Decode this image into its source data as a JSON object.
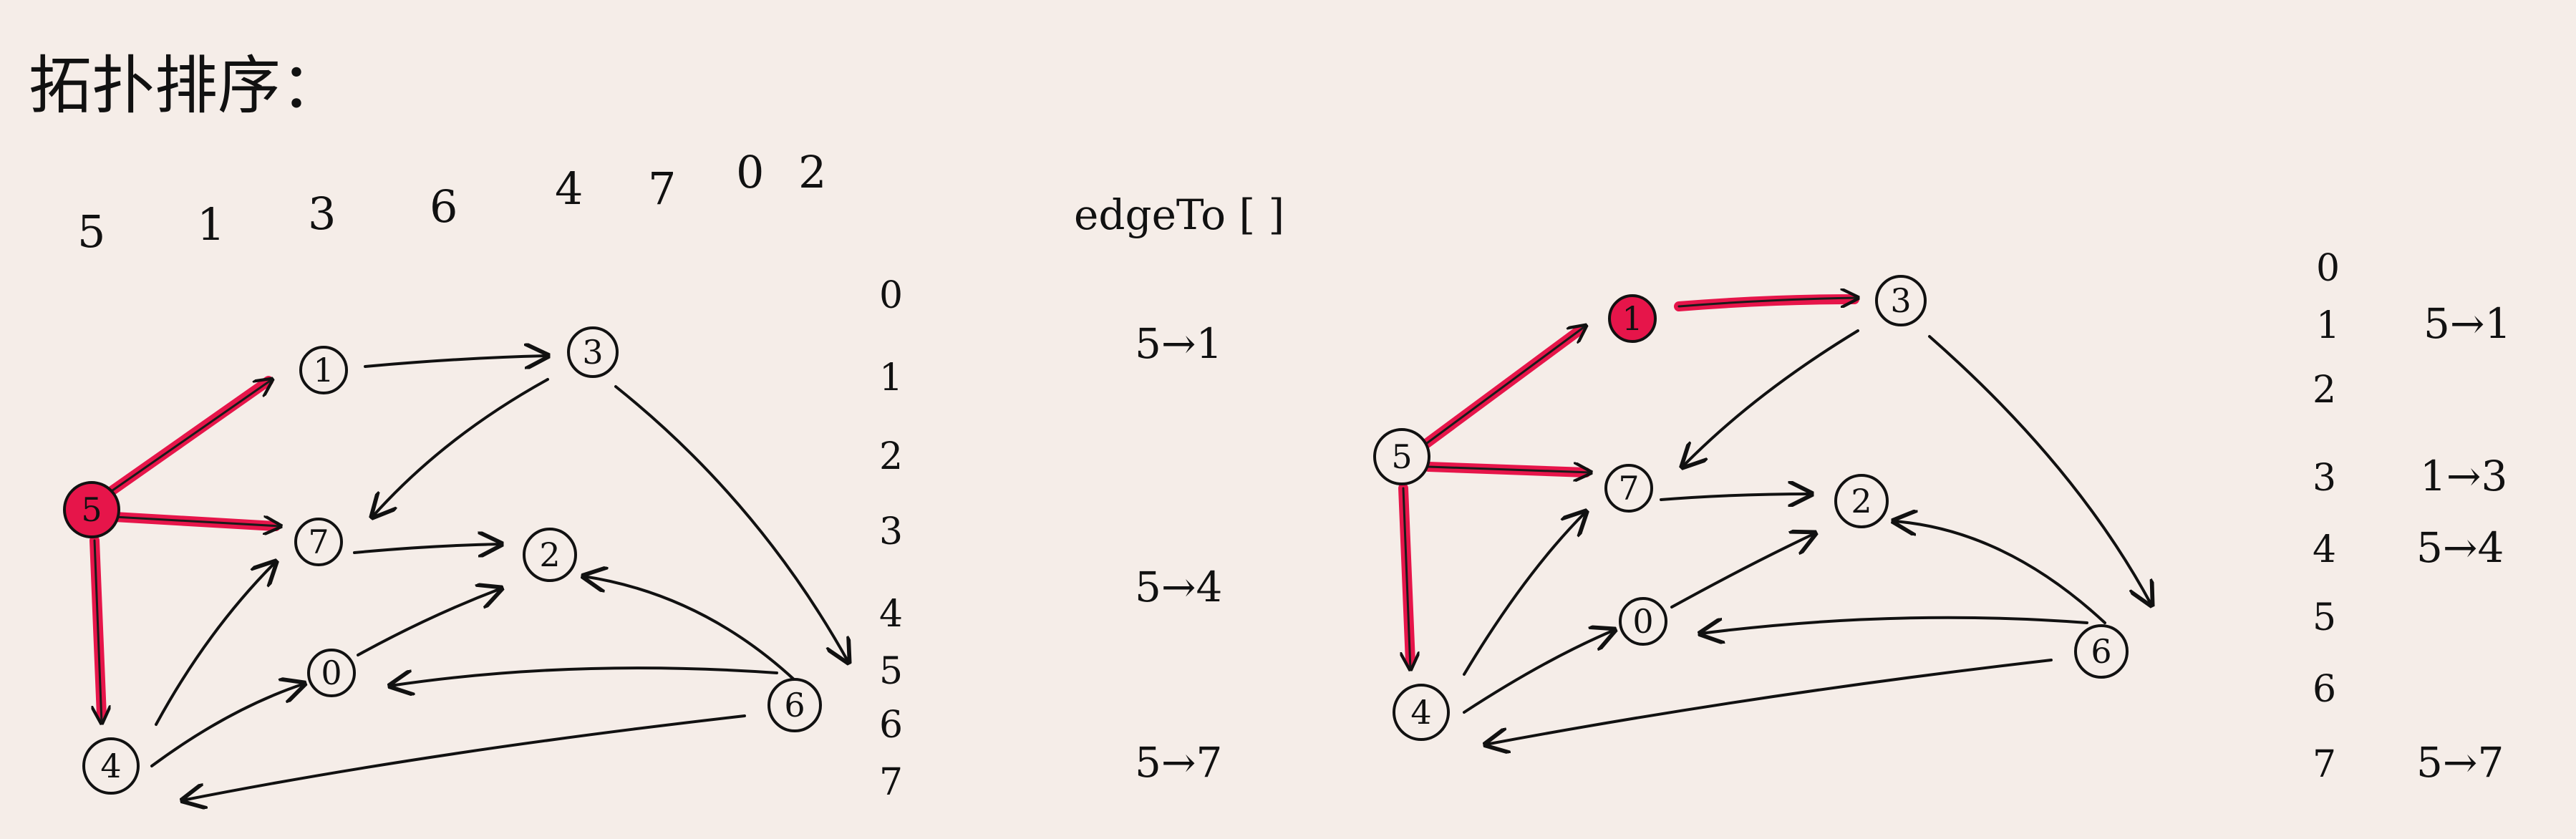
{
  "title": "拓扑排序：",
  "order": [
    "5",
    "1",
    "3",
    "6",
    "4",
    "7",
    "0",
    "2"
  ],
  "left_indices": [
    "0",
    "1",
    "2",
    "3",
    "4",
    "5",
    "6",
    "7"
  ],
  "middle": {
    "header": "edgeTo [ ]",
    "entries": [
      "5→1",
      "5→4",
      "5→7"
    ]
  },
  "right_table": {
    "indices": [
      "0",
      "1",
      "2",
      "3",
      "4",
      "5",
      "6",
      "7"
    ],
    "values": [
      "",
      "5→1",
      "",
      "1→3",
      "5→4",
      "",
      "",
      "5→7"
    ]
  },
  "graph": {
    "nodes": [
      "0",
      "1",
      "2",
      "3",
      "4",
      "5",
      "6",
      "7"
    ],
    "edges": [
      [
        "5",
        "1"
      ],
      [
        "5",
        "7"
      ],
      [
        "5",
        "4"
      ],
      [
        "1",
        "3"
      ],
      [
        "3",
        "7"
      ],
      [
        "3",
        "6"
      ],
      [
        "7",
        "2"
      ],
      [
        "4",
        "7"
      ],
      [
        "4",
        "0"
      ],
      [
        "0",
        "2"
      ],
      [
        "6",
        "0"
      ],
      [
        "6",
        "2"
      ],
      [
        "6",
        "4"
      ]
    ]
  },
  "colors": {
    "highlight": "#e6154a",
    "ink": "#111111",
    "background": "#f5ede8"
  }
}
